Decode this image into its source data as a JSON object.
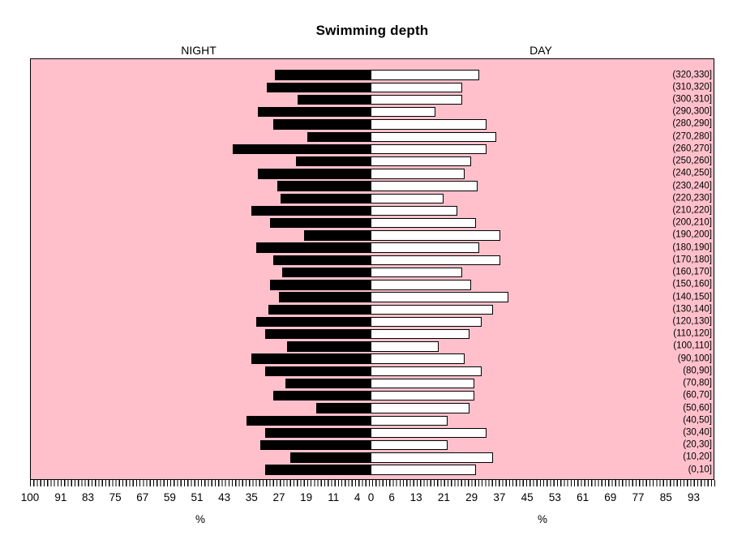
{
  "title": "Swimming depth",
  "left_header": "NIGHT",
  "right_header": "DAY",
  "colors": {
    "plot_background": "#FFC0CB",
    "night_bar": "#000000",
    "day_bar": "#FFFFFF",
    "border": "#000000"
  },
  "axis": {
    "left_tick_labels": [
      "100",
      "91",
      "83",
      "75",
      "67",
      "59",
      "51",
      "43",
      "35",
      "27",
      "19",
      "11",
      "4"
    ],
    "center_label": "0",
    "right_tick_labels": [
      "6",
      "13",
      "21",
      "29",
      "37",
      "45",
      "53",
      "61",
      "69",
      "77",
      "85",
      "93"
    ],
    "left_axis_title": "%",
    "right_axis_title": "%"
  },
  "chart_data": {
    "type": "bar",
    "subtype": "back-to-back horizontal pyramid",
    "title": "Swimming depth",
    "xlabel": "%",
    "left_series_label": "NIGHT",
    "right_series_label": "DAY",
    "xlim_each_side": [
      0,
      100
    ],
    "minor_ticks_every": 1,
    "legend_position": "none",
    "grid": false,
    "plot_background": "#FFC0CB",
    "categories_top_to_bottom": [
      "(320,330]",
      "(310,320]",
      "(300,310]",
      "(290,300]",
      "(280,290]",
      "(270,280]",
      "(260,270]",
      "(250,260]",
      "(240,250]",
      "(230,240]",
      "(220,230]",
      "(210,220]",
      "(200,210]",
      "(190,200]",
      "(180,190]",
      "(170,180]",
      "(160,170]",
      "(150,160]",
      "(140,150]",
      "(130,140]",
      "(120,130]",
      "(110,120]",
      "(100,110]",
      "(90,100]",
      "(80,90]",
      "(70,80]",
      "(60,70]",
      "(50,60]",
      "(40,50]",
      "(30,40]",
      "(20,30]",
      "(10,20]",
      "(0,10]"
    ],
    "series": [
      {
        "name": "NIGHT",
        "side": "left",
        "color": "#000000",
        "values": [
          28,
          30.5,
          21.5,
          33,
          28.5,
          18.5,
          40.5,
          22,
          33,
          27.5,
          26.5,
          35,
          29.5,
          19.5,
          33.5,
          28.5,
          26,
          29.5,
          27,
          30,
          33.5,
          31,
          24.5,
          35,
          31,
          25,
          28.5,
          16,
          36.5,
          31,
          32.5,
          23.5,
          31
        ]
      },
      {
        "name": "DAY",
        "side": "right",
        "color": "#FFFFFF",
        "values": [
          32,
          27,
          27,
          19,
          34,
          37,
          34,
          29.5,
          27.5,
          31.5,
          21.5,
          25.5,
          31,
          38,
          32,
          38,
          27,
          29.5,
          40.5,
          36,
          32.5,
          29,
          20,
          27.5,
          32.5,
          30.5,
          30.5,
          29,
          22.5,
          34,
          22.5,
          36,
          31
        ]
      }
    ]
  }
}
